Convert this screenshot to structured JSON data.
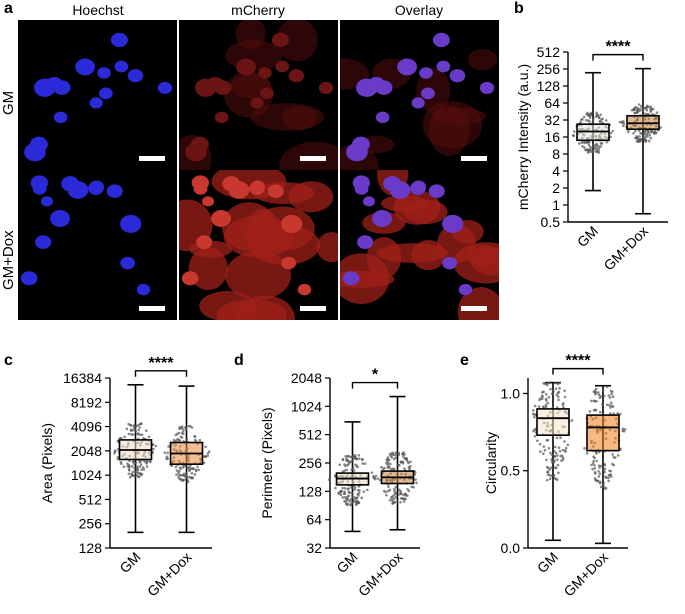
{
  "panel_a": {
    "letter": "a",
    "column_headers": [
      "Hoechst",
      "mCherry",
      "Overlay"
    ],
    "row_labels": [
      "GM",
      "GM+Dox"
    ]
  },
  "chart_data": [
    {
      "panel": "b",
      "type": "box",
      "ylabel": "mCherry Intensity (a.u.)",
      "yscale": "log2",
      "ylim": [
        0.5,
        512
      ],
      "yticks": [
        "512",
        "256",
        "128",
        "64",
        "32",
        "16",
        "8",
        "4",
        "2",
        "1",
        "0.5"
      ],
      "categories": [
        "GM",
        "GM+Dox"
      ],
      "significance": "****",
      "boxes": [
        {
          "min": 1.8,
          "q1": 14,
          "median": 20,
          "q3": 27,
          "max": 220,
          "color": "#e8e4d8"
        },
        {
          "min": 0.7,
          "q1": 22,
          "median": 28,
          "q3": 38,
          "max": 260,
          "color": "#c4823d"
        }
      ]
    },
    {
      "panel": "c",
      "type": "box",
      "ylabel": "Area (Pixels)",
      "yscale": "log2",
      "ylim": [
        128,
        16384
      ],
      "yticks": [
        "16384",
        "8192",
        "4096",
        "2048",
        "1024",
        "512",
        "256",
        "128"
      ],
      "categories": [
        "GM",
        "GM+Dox"
      ],
      "significance": "****",
      "boxes": [
        {
          "min": 200,
          "q1": 1600,
          "median": 2100,
          "q3": 2800,
          "max": 13500,
          "color": "#ece0c6"
        },
        {
          "min": 200,
          "q1": 1400,
          "median": 1900,
          "q3": 2600,
          "max": 13000,
          "color": "#e8893a"
        }
      ]
    },
    {
      "panel": "d",
      "type": "box",
      "ylabel": "Perimeter (Pixels)",
      "yscale": "log2",
      "ylim": [
        32,
        2048
      ],
      "yticks": [
        "2048",
        "1024",
        "512",
        "256",
        "128",
        "64",
        "32"
      ],
      "categories": [
        "GM",
        "GM+Dox"
      ],
      "significance": "*",
      "boxes": [
        {
          "min": 48,
          "q1": 150,
          "median": 175,
          "q3": 200,
          "max": 700,
          "color": "#ece0c6"
        },
        {
          "min": 50,
          "q1": 155,
          "median": 180,
          "q3": 210,
          "max": 1300,
          "color": "#c4823d"
        }
      ]
    },
    {
      "panel": "e",
      "type": "box",
      "ylabel": "Circularity",
      "yscale": "linear",
      "ylim": [
        0.0,
        1.1
      ],
      "yticks": [
        "1.0",
        "0.5",
        "0.0"
      ],
      "categories": [
        "GM",
        "GM+Dox"
      ],
      "significance": "****",
      "boxes": [
        {
          "min": 0.05,
          "q1": 0.73,
          "median": 0.84,
          "q3": 0.9,
          "max": 1.07,
          "color": "#f2e6c8"
        },
        {
          "min": 0.03,
          "q1": 0.63,
          "median": 0.78,
          "q3": 0.86,
          "max": 1.05,
          "color": "#f07d1a"
        }
      ]
    }
  ]
}
